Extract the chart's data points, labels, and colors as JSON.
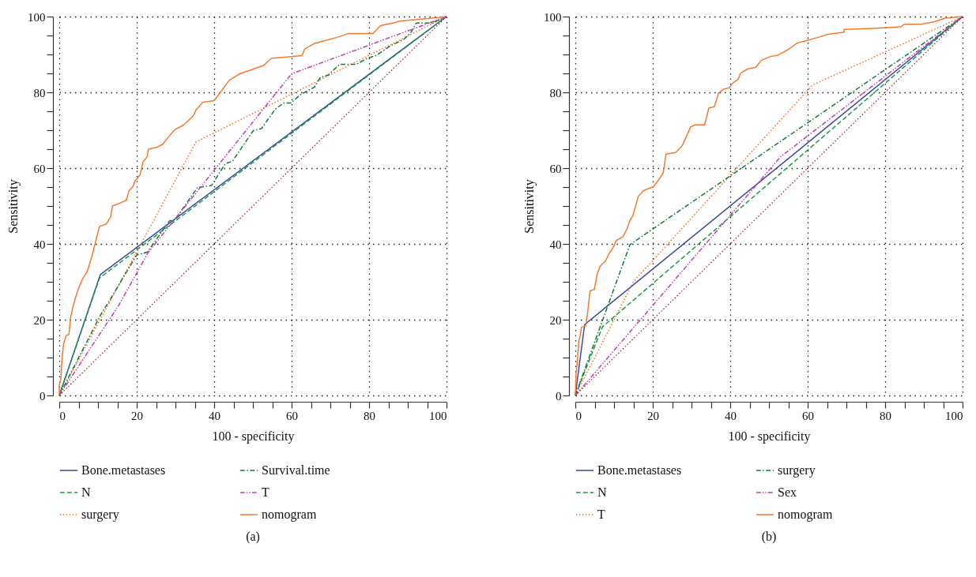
{
  "chart_data": [
    {
      "type": "line",
      "xlabel": "100 - specificity",
      "ylabel": "Sensitivity",
      "annotations": [
        "(a)"
      ],
      "xlim": [
        0,
        100
      ],
      "ylim": [
        0,
        100
      ],
      "xticks": [
        0,
        {
          "value": 5,
          "label": null
        },
        {
          "value": 10,
          "label": null
        },
        {
          "value": 15,
          "label": null
        },
        20,
        {
          "value": 25,
          "label": null
        },
        {
          "value": 30,
          "label": null
        },
        {
          "value": 35,
          "label": null
        },
        40,
        {
          "value": 45,
          "label": null
        },
        {
          "value": 50,
          "label": null
        },
        {
          "value": 55,
          "label": null
        },
        60,
        {
          "value": 65,
          "label": null
        },
        {
          "value": 70,
          "label": null
        },
        {
          "value": 75,
          "label": null
        },
        80,
        {
          "value": 85,
          "label": null
        },
        {
          "value": 90,
          "label": null
        },
        {
          "value": 95,
          "label": null
        },
        100
      ],
      "yticks": [
        0,
        {
          "value": 5,
          "label": null
        },
        {
          "value": 10,
          "label": null
        },
        {
          "value": 15,
          "label": null
        },
        20,
        {
          "value": 25,
          "label": null
        },
        {
          "value": 30,
          "label": null
        },
        {
          "value": 35,
          "label": null
        },
        40,
        {
          "value": 45,
          "label": null
        },
        {
          "value": 50,
          "label": null
        },
        {
          "value": 55,
          "label": null
        },
        60,
        {
          "value": 65,
          "label": null
        },
        {
          "value": 70,
          "label": null
        },
        {
          "value": 75,
          "label": null
        },
        80,
        {
          "value": 85,
          "label": null
        },
        {
          "value": 90,
          "label": null
        },
        {
          "value": 95,
          "label": null
        },
        100
      ],
      "grid": true,
      "legend": "bottom",
      "series": [
        {
          "name": "Bone.metastases",
          "color": "#3a4a9c",
          "line_style": "solid",
          "x": [
            0,
            10.6,
            100
          ],
          "values": [
            0,
            31.9,
            100
          ]
        },
        {
          "name": "N",
          "color": "#1a9a48",
          "line_style": "dashed",
          "x": [
            0,
            10.4,
            100
          ],
          "values": [
            0,
            31,
            100
          ]
        },
        {
          "name": "surgery",
          "color": "#ff6a1a",
          "line_style": "dotted",
          "x": [
            0,
            35.3,
            100
          ],
          "values": [
            0,
            66.9,
            100
          ]
        },
        {
          "name": "Survival.time",
          "color": "#127a38",
          "line_style": "dashdot",
          "x": [
            0,
            10.8,
            12.6,
            20,
            22.7,
            28.5,
            29.9,
            35.7,
            39.3,
            42.9,
            44.7,
            50.1,
            52.2,
            55.8,
            58,
            59.8,
            62.3,
            65.9,
            67.4,
            69.5,
            72.4,
            76.7,
            79.6,
            81.8,
            85.4,
            89,
            90.8,
            92.2,
            96.2,
            100
          ],
          "values": [
            0,
            21.5,
            24.4,
            37.1,
            37.8,
            46.1,
            46.4,
            54.9,
            55.4,
            61.2,
            61.8,
            69.9,
            70.4,
            75.6,
            77.2,
            77.2,
            79.4,
            81.4,
            83.9,
            84.6,
            87.4,
            87.4,
            89,
            89.7,
            92.2,
            94,
            95.8,
            98.3,
            98.3,
            100
          ]
        },
        {
          "name": "T",
          "color": "#c040b0",
          "line_style": "dashdotdot",
          "x": [
            0,
            15.3,
            23,
            60,
            100
          ],
          "values": [
            0,
            23.7,
            37.8,
            84.9,
            100
          ]
        },
        {
          "name": "nomogram",
          "color": "#f47a30",
          "line_style": "solid",
          "x": [
            0,
            0,
            0.4,
            0.7,
            1.1,
            1.8,
            2.5,
            2.9,
            3.6,
            4.3,
            5,
            6.1,
            7.2,
            7.9,
            8.6,
            9.4,
            10.1,
            10.4,
            12.2,
            13.3,
            13.7,
            14.8,
            17.3,
            18,
            19,
            19.5,
            20.9,
            21.6,
            22.7,
            23,
            25.2,
            26.7,
            28.1,
            29.9,
            32,
            33.6,
            34.6,
            35.3,
            37.1,
            40,
            42.1,
            43.9,
            45,
            46.8,
            50,
            52.9,
            54.8,
            58.7,
            62.7,
            63.4,
            65.9,
            68.8,
            71.7,
            74.6,
            81,
            82.9,
            86.1,
            87.9,
            94,
            100
          ],
          "values": [
            0,
            2.8,
            4.3,
            9.3,
            13.6,
            15.8,
            16.1,
            20.5,
            23.7,
            26.2,
            28.4,
            30.9,
            32.7,
            34.9,
            37.4,
            40.7,
            43.5,
            44.6,
            45.3,
            47.2,
            50,
            50.4,
            51.5,
            54,
            55.1,
            56.5,
            58.3,
            61.6,
            63,
            65,
            65.5,
            66.3,
            68.1,
            70.2,
            71.3,
            72.8,
            73.8,
            75.3,
            77.4,
            77.8,
            80.7,
            83.2,
            83.9,
            85,
            86.1,
            87.2,
            89,
            89.3,
            89.7,
            91.5,
            92.9,
            93.7,
            94.5,
            95.5,
            95.5,
            97.6,
            98.3,
            98.8,
            99.4,
            100
          ]
        },
        {
          "color": "#a01830",
          "line_style": "dotted",
          "x": [
            0,
            100
          ],
          "values": [
            0,
            100
          ]
        }
      ]
    },
    {
      "type": "line",
      "xlabel": "100 - specificity",
      "ylabel": "Sensitivity",
      "annotations": [
        "(b)"
      ],
      "xlim": [
        0,
        100
      ],
      "ylim": [
        0,
        100
      ],
      "xticks": [
        0,
        {
          "value": 5,
          "label": null
        },
        {
          "value": 10,
          "label": null
        },
        {
          "value": 15,
          "label": null
        },
        20,
        {
          "value": 25,
          "label": null
        },
        {
          "value": 30,
          "label": null
        },
        {
          "value": 35,
          "label": null
        },
        40,
        {
          "value": 45,
          "label": null
        },
        {
          "value": 50,
          "label": null
        },
        {
          "value": 55,
          "label": null
        },
        60,
        {
          "value": 65,
          "label": null
        },
        {
          "value": 70,
          "label": null
        },
        {
          "value": 75,
          "label": null
        },
        80,
        {
          "value": 85,
          "label": null
        },
        {
          "value": 90,
          "label": null
        },
        {
          "value": 95,
          "label": null
        },
        100
      ],
      "yticks": [
        0,
        {
          "value": 5,
          "label": null
        },
        {
          "value": 10,
          "label": null
        },
        {
          "value": 15,
          "label": null
        },
        20,
        {
          "value": 25,
          "label": null
        },
        {
          "value": 30,
          "label": null
        },
        {
          "value": 35,
          "label": null
        },
        40,
        {
          "value": 45,
          "label": null
        },
        {
          "value": 50,
          "label": null
        },
        {
          "value": 55,
          "label": null
        },
        60,
        {
          "value": 65,
          "label": null
        },
        {
          "value": 70,
          "label": null
        },
        {
          "value": 75,
          "label": null
        },
        80,
        {
          "value": 85,
          "label": null
        },
        {
          "value": 90,
          "label": null
        },
        {
          "value": 95,
          "label": null
        },
        100
      ],
      "grid": true,
      "legend": "bottom",
      "series": [
        {
          "name": "Bone.metastases",
          "color": "#3a4a9c",
          "line_style": "solid",
          "x": [
            0,
            2.4,
            100
          ],
          "values": [
            0,
            18.7,
            100
          ]
        },
        {
          "name": "N",
          "color": "#1a9a48",
          "line_style": "dashed",
          "x": [
            0,
            7,
            100
          ],
          "values": [
            0,
            18.1,
            100
          ]
        },
        {
          "name": "T",
          "color": "#ff6a1a",
          "line_style": "dotted",
          "x": [
            0,
            15,
            61.2,
            100
          ],
          "values": [
            0,
            30,
            81.9,
            100
          ]
        },
        {
          "name": "surgery",
          "color": "#127a38",
          "line_style": "dashdot",
          "x": [
            0,
            14.1,
            100
          ],
          "values": [
            0,
            39.8,
            100
          ]
        },
        {
          "name": "Sex",
          "color": "#c040b0",
          "line_style": "dashdotdot",
          "x": [
            0,
            53,
            100
          ],
          "values": [
            0,
            63,
            100
          ]
        },
        {
          "name": "nomogram",
          "color": "#f47a30",
          "line_style": "solid",
          "x": [
            0,
            0.2,
            0.6,
            0.9,
            1.3,
            1.6,
            2.7,
            3.1,
            3.8,
            4.9,
            5.6,
            6.4,
            7.8,
            8.8,
            9.8,
            10.6,
            12.3,
            13.4,
            14.1,
            14.8,
            16.3,
            17.7,
            20.2,
            21.3,
            22.7,
            23.4,
            25.9,
            27.6,
            28.7,
            29.8,
            30.9,
            33.4,
            34.5,
            35.9,
            37,
            38.4,
            39.8,
            40.5,
            42,
            42.7,
            44.5,
            46.6,
            48,
            50.2,
            52.3,
            54.8,
            57.3,
            59.8,
            62.3,
            65.2,
            69.4,
            69.4,
            76.9,
            84.1,
            84.8,
            89.4,
            92.6,
            95.5,
            100
          ],
          "values": [
            0,
            5.9,
            10.1,
            14.4,
            15.9,
            18,
            18.4,
            21.2,
            27.6,
            28,
            31.9,
            34.1,
            35.5,
            37.6,
            39.1,
            40.9,
            41.9,
            44.1,
            46.2,
            47.3,
            52.6,
            54.1,
            55.1,
            56.6,
            58.7,
            63.7,
            64.1,
            65.9,
            68.4,
            70.9,
            71.4,
            71.4,
            75.9,
            76.2,
            79.8,
            80.9,
            81.2,
            82.3,
            83.4,
            85.1,
            86.2,
            86.6,
            88.4,
            89.4,
            89.8,
            91.2,
            93,
            93.7,
            94.4,
            95.3,
            95.9,
            96.6,
            96.9,
            97.3,
            97.9,
            98,
            98.6,
            99.6,
            100
          ]
        },
        {
          "color": "#a01830",
          "line_style": "dotted",
          "x": [
            0,
            100
          ],
          "values": [
            0,
            100
          ]
        }
      ]
    }
  ]
}
